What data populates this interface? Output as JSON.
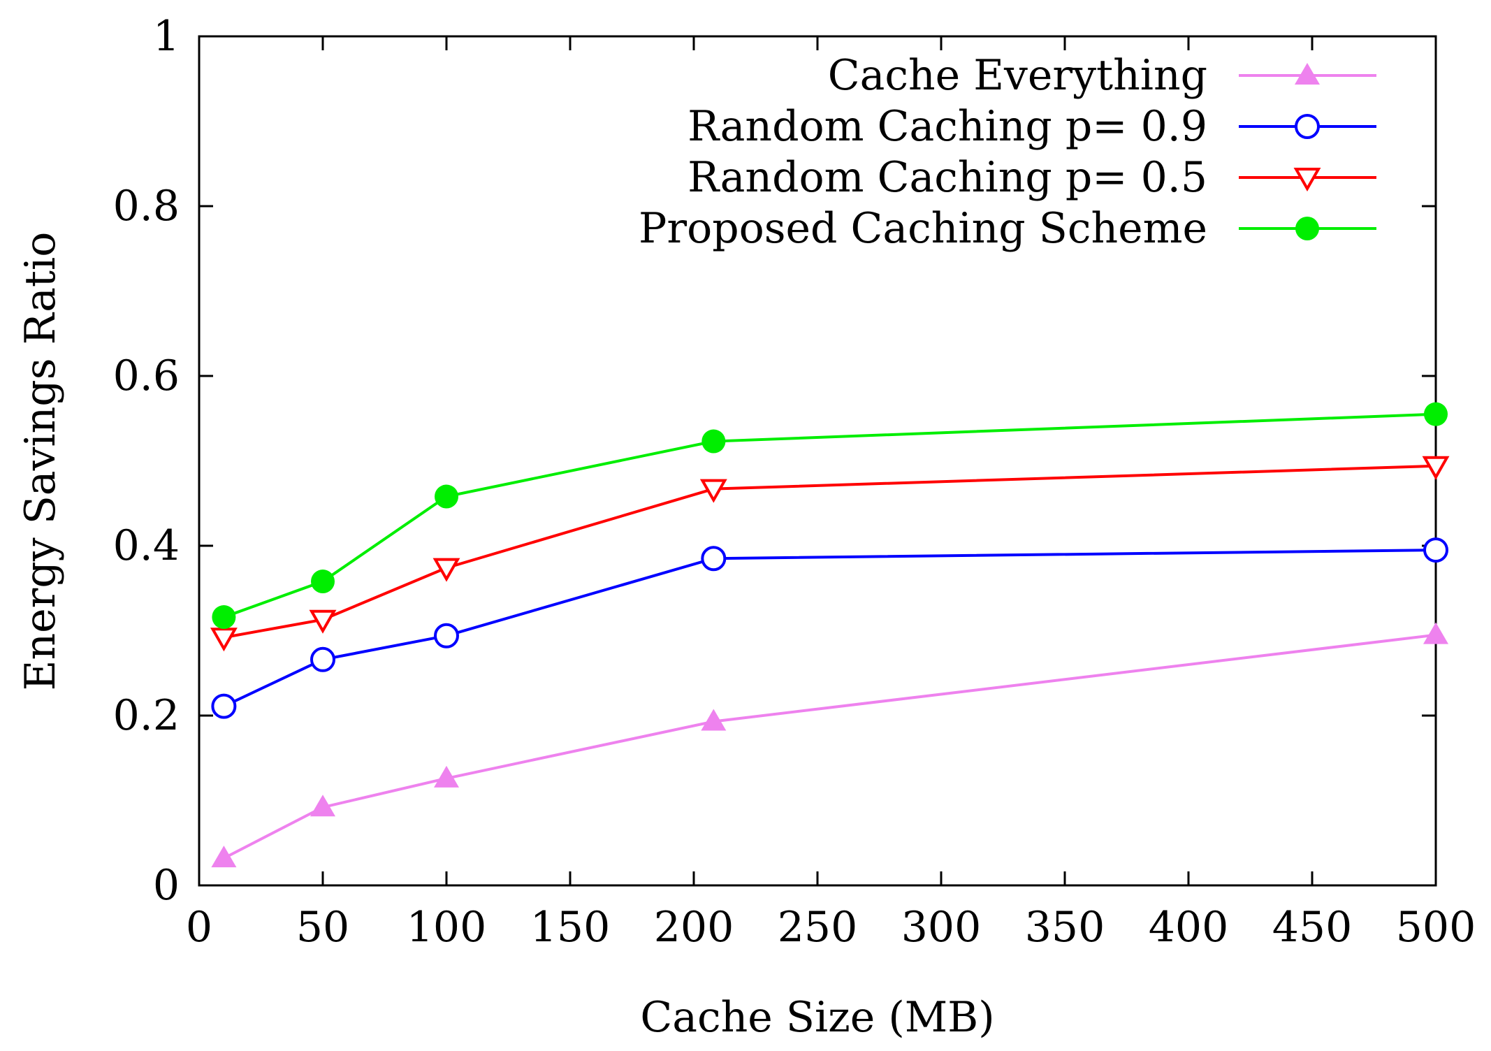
{
  "chart_data": {
    "type": "line",
    "title": "",
    "xlabel": "Cache Size (MB)",
    "ylabel": "Energy Savings Ratio",
    "xlim": [
      0,
      500
    ],
    "ylim": [
      0,
      1
    ],
    "x_ticks": [
      "0",
      "50",
      "100",
      "150",
      "200",
      "250",
      "300",
      "350",
      "400",
      "450",
      "500"
    ],
    "x_tick_values": [
      0,
      50,
      100,
      150,
      200,
      250,
      300,
      350,
      400,
      450,
      500
    ],
    "y_ticks": [
      "0",
      "0.2",
      "0.4",
      "0.6",
      "0.8",
      "1"
    ],
    "y_tick_values": [
      0,
      0.2,
      0.4,
      0.6,
      0.8,
      1
    ],
    "grid": false,
    "legend_position": "top-right",
    "x": [
      10,
      50,
      100,
      208,
      500
    ],
    "series": [
      {
        "name": "Cache Everything",
        "color": "#ee82ee",
        "marker": "triangle-up-filled",
        "values": [
          0.032,
          0.092,
          0.126,
          0.193,
          0.295
        ]
      },
      {
        "name": "Random Caching p= 0.9",
        "color": "#0000ff",
        "marker": "circle-open",
        "values": [
          0.211,
          0.266,
          0.294,
          0.385,
          0.395
        ]
      },
      {
        "name": "Random Caching p= 0.5",
        "color": "#ff0000",
        "marker": "triangle-down-open",
        "values": [
          0.292,
          0.313,
          0.374,
          0.467,
          0.494
        ]
      },
      {
        "name": "Proposed Caching Scheme",
        "color": "#00ee00",
        "marker": "circle-filled",
        "values": [
          0.316,
          0.358,
          0.458,
          0.523,
          0.555
        ]
      }
    ]
  }
}
